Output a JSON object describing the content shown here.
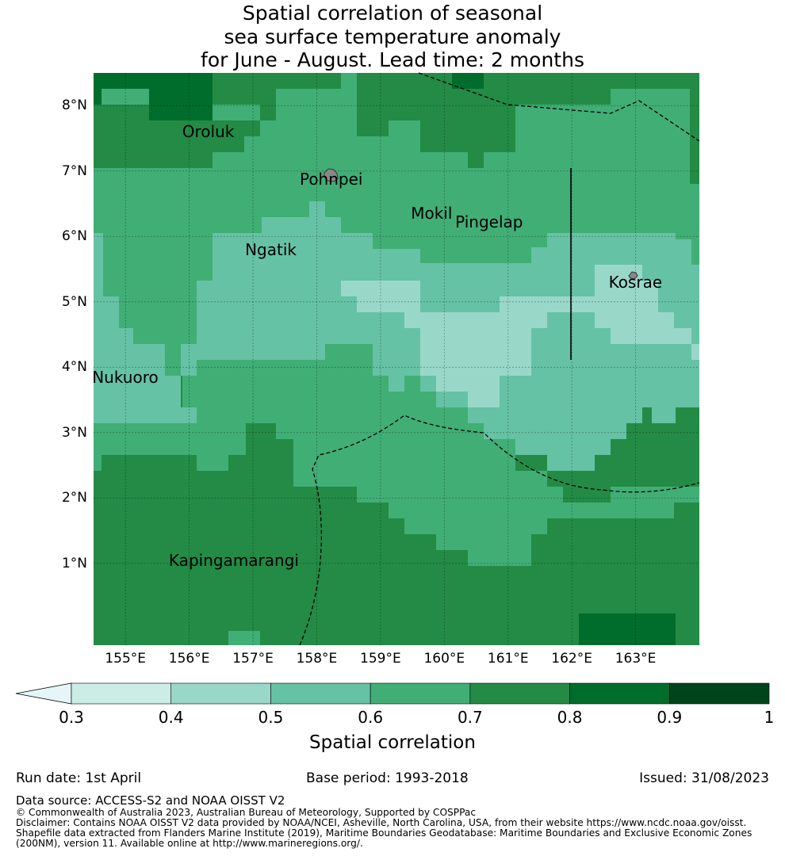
{
  "title": {
    "lines": [
      "Spatial correlation of seasonal",
      "sea surface temperature anomaly",
      "for June - August. Lead time: 2 months"
    ]
  },
  "map": {
    "extent": {
      "lon_min": 154.5,
      "lon_max": 164.0,
      "lat_min": -0.25,
      "lat_max": 8.5
    },
    "lat_ticks": [
      {
        "value": 8,
        "label": "8°N"
      },
      {
        "value": 7,
        "label": "7°N"
      },
      {
        "value": 6,
        "label": "6°N"
      },
      {
        "value": 5,
        "label": "5°N"
      },
      {
        "value": 4,
        "label": "4°N"
      },
      {
        "value": 3,
        "label": "3°N"
      },
      {
        "value": 2,
        "label": "2°N"
      },
      {
        "value": 1,
        "label": "1°N"
      }
    ],
    "lon_ticks": [
      {
        "value": 155,
        "label": "155°E"
      },
      {
        "value": 156,
        "label": "156°E"
      },
      {
        "value": 157,
        "label": "157°E"
      },
      {
        "value": 158,
        "label": "158°E"
      },
      {
        "value": 159,
        "label": "159°E"
      },
      {
        "value": 160,
        "label": "160°E"
      },
      {
        "value": 161,
        "label": "161°E"
      },
      {
        "value": 162,
        "label": "162°E"
      },
      {
        "value": 163,
        "label": "163°E"
      }
    ],
    "places": [
      {
        "name": "Oroluk",
        "lon": 156.3,
        "lat": 7.6
      },
      {
        "name": "Pohnpei",
        "lon": 158.23,
        "lat": 6.87
      },
      {
        "name": "Mokil",
        "lon": 159.8,
        "lat": 6.35
      },
      {
        "name": "Pingelap",
        "lon": 160.7,
        "lat": 6.22
      },
      {
        "name": "Ngatik",
        "lon": 157.28,
        "lat": 5.8
      },
      {
        "name": "Kosrae",
        "lon": 163.0,
        "lat": 5.3
      },
      {
        "name": "Nukuoro",
        "lon": 155.0,
        "lat": 3.85
      },
      {
        "name": "Kapingamarangi",
        "lon": 156.7,
        "lat": 1.05
      }
    ],
    "legend_colors": {
      "0.3-0.4": "#ccece6",
      "0.4-0.5": "#99d8c9",
      "0.5-0.6": "#66c2a4",
      "0.6-0.7": "#41ae76",
      "0.7-0.8": "#238b45",
      "0.8-0.9": "#006d2c",
      "0.9-1": "#00441b",
      "below-0.3": "#e5f5f9"
    }
  },
  "colorbar": {
    "ticks": [
      "0.3",
      "0.4",
      "0.5",
      "0.6",
      "0.7",
      "0.8",
      "0.9",
      "1"
    ],
    "colors": [
      "#ccece6",
      "#99d8c9",
      "#66c2a4",
      "#41ae76",
      "#238b45",
      "#006d2c",
      "#00441b"
    ],
    "extend_color": "#e5f5f9",
    "title": "Spatial correlation"
  },
  "footer": {
    "run_date": "Run date: 1st April",
    "base_period": "Base period: 1993-2018",
    "issued": "Issued: 31/08/2023",
    "data_source": "Data source: ACCESS-S2 and NOAA OISST V2",
    "copyright": "© Commonwealth of Australia 2023, Australian Bureau of Meteorology, Supported by COSPPac",
    "disclaimer_1": "Disclaimer: Contains NOAA OISST V2 data provided by NOAA/NCEI, Asheville, North Carolina, USA, from their website https://www.ncdc.noaa.gov/oisst.",
    "disclaimer_2": "Shapefile data extracted from Flanders Marine Institute (2019), Maritime Boundaries Geodatabase: Maritime Boundaries and Exclusive Economic Zones",
    "disclaimer_3": "(200NM), version 11. Available online at http://www.marineregions.org/."
  }
}
